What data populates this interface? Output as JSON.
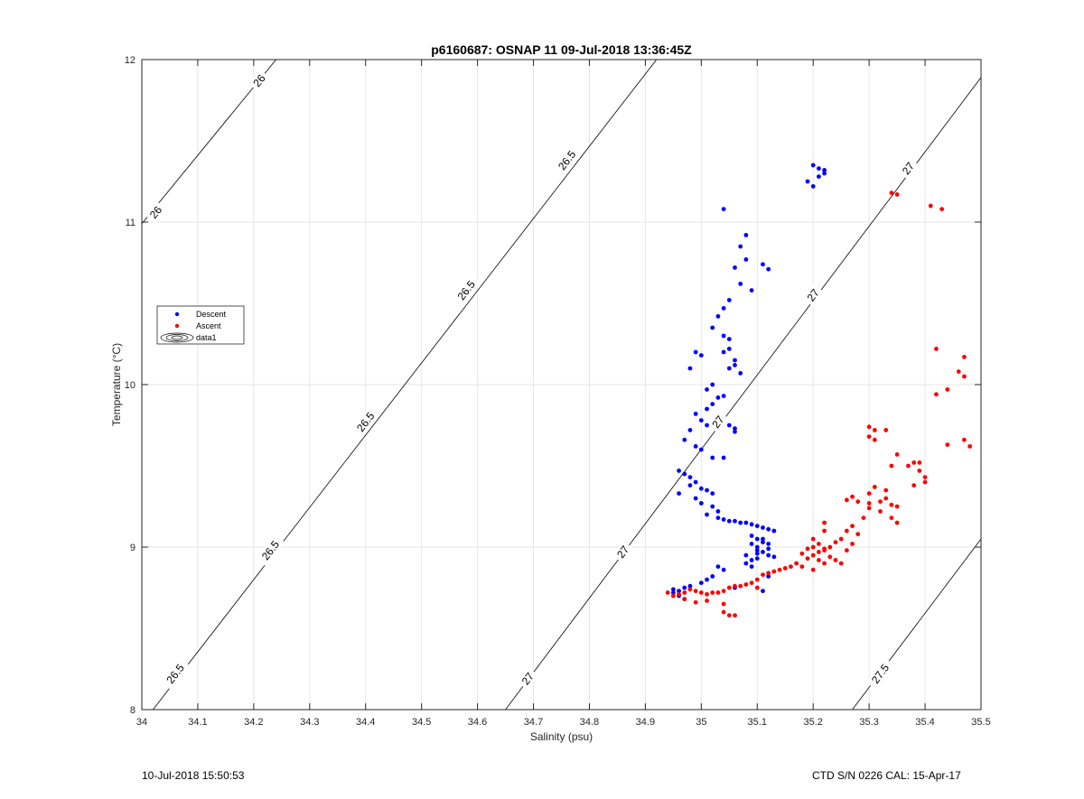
{
  "footer": {
    "left": "10-Jul-2018 15:50:53",
    "right": "CTD S/N 0226  CAL: 15-Apr-17"
  },
  "colors": {
    "descent": "#0000ff",
    "ascent": "#ff0000",
    "grid": "#e6e6e6",
    "axis": "#262626"
  },
  "chart_data": {
    "type": "scatter",
    "title": "p6160687: OSNAP 11 09-Jul-2018 13:36:45Z",
    "xlabel": "Salinity (psu)",
    "ylabel": "Temperature (°C)",
    "xlim": [
      34,
      35.5
    ],
    "ylim": [
      8,
      12
    ],
    "grid": true,
    "legend_position": "left",
    "x_ticks": [
      34,
      34.1,
      34.2,
      34.3,
      34.4,
      34.5,
      34.6,
      34.7,
      34.8,
      34.9,
      35,
      35.1,
      35.2,
      35.3,
      35.4,
      35.5
    ],
    "x_tick_labels": [
      "34",
      "34.1",
      "34.2",
      "34.3",
      "34.4",
      "34.5",
      "34.6",
      "34.7",
      "34.8",
      "34.9",
      "35",
      "35.1",
      "35.2",
      "35.3",
      "35.4",
      "35.5"
    ],
    "y_ticks": [
      8,
      9,
      10,
      11,
      12
    ],
    "y_tick_labels": [
      "8",
      "9",
      "10",
      "11",
      "12"
    ],
    "series": [
      {
        "name": "Descent",
        "color": "#0000ff",
        "points": [
          [
            35.2,
            11.35
          ],
          [
            35.21,
            11.33
          ],
          [
            35.22,
            11.3
          ],
          [
            35.19,
            11.25
          ],
          [
            35.2,
            11.22
          ],
          [
            35.21,
            11.28
          ],
          [
            35.22,
            11.32
          ],
          [
            35.04,
            11.08
          ],
          [
            35.08,
            10.92
          ],
          [
            35.07,
            10.85
          ],
          [
            35.08,
            10.77
          ],
          [
            35.11,
            10.74
          ],
          [
            35.12,
            10.71
          ],
          [
            35.06,
            10.72
          ],
          [
            35.09,
            10.58
          ],
          [
            35.07,
            10.62
          ],
          [
            35.05,
            10.52
          ],
          [
            35.04,
            10.47
          ],
          [
            35.03,
            10.42
          ],
          [
            35.02,
            10.35
          ],
          [
            35.04,
            10.3
          ],
          [
            35.05,
            10.28
          ],
          [
            35.05,
            10.22
          ],
          [
            35.04,
            10.2
          ],
          [
            35.06,
            10.15
          ],
          [
            35.05,
            10.1
          ],
          [
            35.07,
            10.07
          ],
          [
            35.06,
            10.12
          ],
          [
            34.99,
            10.2
          ],
          [
            35.0,
            10.18
          ],
          [
            34.98,
            10.1
          ],
          [
            35.02,
            10.0
          ],
          [
            35.01,
            9.97
          ],
          [
            35.03,
            9.92
          ],
          [
            35.04,
            9.93
          ],
          [
            35.02,
            9.88
          ],
          [
            35.01,
            9.85
          ],
          [
            34.99,
            9.82
          ],
          [
            35.0,
            9.78
          ],
          [
            35.01,
            9.75
          ],
          [
            34.98,
            9.72
          ],
          [
            34.97,
            9.66
          ],
          [
            34.99,
            9.62
          ],
          [
            35.0,
            9.6
          ],
          [
            35.02,
            9.55
          ],
          [
            35.04,
            9.55
          ],
          [
            35.05,
            9.75
          ],
          [
            35.06,
            9.73
          ],
          [
            35.06,
            9.71
          ],
          [
            34.96,
            9.47
          ],
          [
            34.97,
            9.45
          ],
          [
            34.98,
            9.43
          ],
          [
            34.99,
            9.4
          ],
          [
            34.98,
            9.38
          ],
          [
            35.0,
            9.36
          ],
          [
            35.01,
            9.35
          ],
          [
            35.02,
            9.33
          ],
          [
            34.99,
            9.3
          ],
          [
            35.0,
            9.27
          ],
          [
            35.02,
            9.25
          ],
          [
            35.03,
            9.22
          ],
          [
            34.96,
            9.33
          ],
          [
            35.01,
            9.2
          ],
          [
            35.03,
            9.18
          ],
          [
            35.04,
            9.17
          ],
          [
            35.05,
            9.16
          ],
          [
            35.06,
            9.16
          ],
          [
            35.07,
            9.15
          ],
          [
            35.08,
            9.15
          ],
          [
            35.09,
            9.14
          ],
          [
            35.1,
            9.13
          ],
          [
            35.11,
            9.12
          ],
          [
            35.12,
            9.11
          ],
          [
            35.13,
            9.1
          ],
          [
            35.09,
            9.07
          ],
          [
            35.1,
            9.05
          ],
          [
            35.11,
            9.03
          ],
          [
            35.09,
            9.02
          ],
          [
            35.1,
            9.0
          ],
          [
            35.12,
            8.99
          ],
          [
            35.11,
            8.97
          ],
          [
            35.1,
            8.96
          ],
          [
            35.12,
            8.95
          ],
          [
            35.13,
            8.94
          ],
          [
            35.1,
            8.93
          ],
          [
            35.09,
            8.92
          ],
          [
            35.08,
            8.9
          ],
          [
            35.09,
            8.88
          ],
          [
            35.1,
            8.98
          ],
          [
            35.11,
            9.05
          ],
          [
            35.12,
            9.02
          ],
          [
            35.08,
            8.95
          ],
          [
            35.03,
            8.88
          ],
          [
            35.04,
            8.86
          ],
          [
            35.02,
            8.82
          ],
          [
            35.01,
            8.8
          ],
          [
            35.0,
            8.78
          ],
          [
            34.98,
            8.76
          ],
          [
            34.97,
            8.75
          ],
          [
            34.96,
            8.73
          ],
          [
            34.95,
            8.72
          ],
          [
            34.96,
            8.7
          ],
          [
            34.95,
            8.74
          ],
          [
            35.06,
            8.75
          ],
          [
            35.11,
            8.73
          ],
          [
            35.12,
            8.82
          ],
          [
            34.97,
            8.68
          ]
        ]
      },
      {
        "name": "Ascent",
        "color": "#ff0000",
        "points": [
          [
            35.35,
            11.17
          ],
          [
            35.41,
            11.1
          ],
          [
            35.43,
            11.08
          ],
          [
            35.34,
            11.18
          ],
          [
            35.42,
            10.22
          ],
          [
            35.47,
            10.17
          ],
          [
            35.46,
            10.08
          ],
          [
            35.47,
            10.05
          ],
          [
            35.44,
            9.97
          ],
          [
            35.42,
            9.94
          ],
          [
            35.47,
            9.66
          ],
          [
            35.48,
            9.62
          ],
          [
            35.44,
            9.63
          ],
          [
            35.3,
            9.74
          ],
          [
            35.31,
            9.72
          ],
          [
            35.33,
            9.72
          ],
          [
            35.31,
            9.66
          ],
          [
            35.3,
            9.68
          ],
          [
            35.35,
            9.57
          ],
          [
            35.34,
            9.5
          ],
          [
            35.37,
            9.5
          ],
          [
            35.38,
            9.52
          ],
          [
            35.39,
            9.52
          ],
          [
            35.39,
            9.47
          ],
          [
            35.4,
            9.43
          ],
          [
            35.4,
            9.4
          ],
          [
            35.38,
            9.38
          ],
          [
            35.31,
            9.37
          ],
          [
            35.33,
            9.35
          ],
          [
            35.3,
            9.33
          ],
          [
            35.27,
            9.31
          ],
          [
            35.26,
            9.29
          ],
          [
            35.28,
            9.28
          ],
          [
            35.3,
            9.27
          ],
          [
            35.32,
            9.28
          ],
          [
            35.33,
            9.3
          ],
          [
            35.34,
            9.26
          ],
          [
            35.35,
            9.25
          ],
          [
            35.32,
            9.22
          ],
          [
            35.34,
            9.18
          ],
          [
            35.35,
            9.15
          ],
          [
            35.3,
            9.24
          ],
          [
            35.29,
            9.18
          ],
          [
            35.27,
            9.13
          ],
          [
            35.26,
            9.1
          ],
          [
            35.28,
            9.08
          ],
          [
            35.25,
            9.05
          ],
          [
            35.24,
            9.03
          ],
          [
            35.23,
            9.0
          ],
          [
            35.22,
            8.98
          ],
          [
            35.21,
            8.97
          ],
          [
            35.2,
            8.95
          ],
          [
            35.19,
            8.93
          ],
          [
            35.21,
            8.92
          ],
          [
            35.22,
            8.9
          ],
          [
            35.24,
            8.92
          ],
          [
            35.25,
            8.9
          ],
          [
            35.23,
            8.94
          ],
          [
            35.22,
            8.99
          ],
          [
            35.21,
            9.02
          ],
          [
            35.2,
            9.0
          ],
          [
            35.19,
            8.99
          ],
          [
            35.18,
            8.96
          ],
          [
            35.2,
            9.05
          ],
          [
            35.22,
            9.1
          ],
          [
            35.22,
            9.15
          ],
          [
            35.17,
            8.9
          ],
          [
            35.16,
            8.88
          ],
          [
            35.15,
            8.87
          ],
          [
            35.14,
            8.86
          ],
          [
            35.13,
            8.85
          ],
          [
            35.12,
            8.84
          ],
          [
            35.11,
            8.83
          ],
          [
            35.1,
            8.8
          ],
          [
            35.09,
            8.78
          ],
          [
            35.08,
            8.77
          ],
          [
            35.07,
            8.76
          ],
          [
            35.06,
            8.76
          ],
          [
            35.05,
            8.75
          ],
          [
            35.04,
            8.73
          ],
          [
            35.03,
            8.72
          ],
          [
            35.02,
            8.72
          ],
          [
            35.01,
            8.71
          ],
          [
            35.0,
            8.72
          ],
          [
            34.99,
            8.73
          ],
          [
            34.98,
            8.74
          ],
          [
            34.97,
            8.72
          ],
          [
            34.96,
            8.71
          ],
          [
            34.95,
            8.7
          ],
          [
            34.94,
            8.72
          ],
          [
            34.97,
            8.68
          ],
          [
            34.99,
            8.66
          ],
          [
            35.04,
            8.6
          ],
          [
            35.05,
            8.58
          ],
          [
            35.06,
            8.58
          ],
          [
            35.04,
            8.65
          ],
          [
            35.01,
            8.67
          ],
          [
            35.1,
            8.75
          ],
          [
            35.18,
            8.88
          ],
          [
            35.2,
            8.86
          ],
          [
            35.26,
            8.98
          ],
          [
            35.27,
            9.02
          ]
        ]
      }
    ],
    "legend": [
      {
        "label": "Descent",
        "marker": "dot",
        "color": "#0000ff"
      },
      {
        "label": "Ascent",
        "marker": "dot",
        "color": "#ff0000"
      },
      {
        "label": "data1",
        "marker": "contour",
        "color": "#000000"
      }
    ],
    "contours": [
      {
        "label": "26",
        "endpoints": [
          [
            34.0,
            10.99
          ],
          [
            34.24,
            12.0
          ]
        ],
        "label_positions": [
          [
            34.025,
            11.06
          ],
          [
            34.21,
            11.87
          ]
        ]
      },
      {
        "label": "26.5",
        "endpoints": [
          [
            34.02,
            8.0
          ],
          [
            34.92,
            12.0
          ]
        ],
        "label_positions": [
          [
            34.06,
            8.22
          ],
          [
            34.23,
            8.98
          ],
          [
            34.4,
            9.77
          ],
          [
            34.58,
            10.58
          ],
          [
            34.76,
            11.38
          ]
        ]
      },
      {
        "label": "27",
        "endpoints": [
          [
            34.65,
            8.0
          ],
          [
            35.5,
            11.89
          ]
        ],
        "label_positions": [
          [
            34.69,
            8.19
          ],
          [
            34.86,
            8.97
          ],
          [
            35.03,
            9.77
          ],
          [
            35.2,
            10.55
          ],
          [
            35.37,
            11.33
          ]
        ]
      },
      {
        "label": "27.5",
        "endpoints": [
          [
            35.27,
            8.0
          ],
          [
            35.5,
            9.05
          ]
        ],
        "label_positions": [
          [
            35.32,
            8.22
          ]
        ]
      }
    ]
  }
}
